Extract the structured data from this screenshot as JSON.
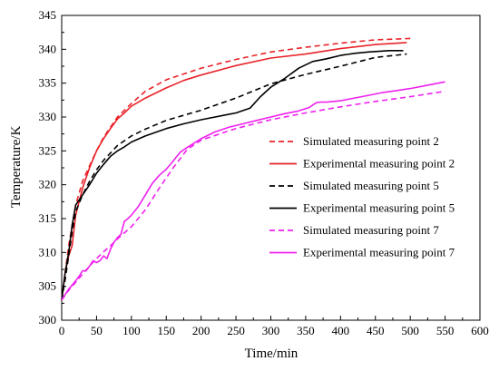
{
  "chart_data": {
    "type": "line",
    "xlabel": "Time/min",
    "ylabel": "Temperature/K",
    "xlim": [
      0,
      600
    ],
    "ylim": [
      300,
      345
    ],
    "xticks": [
      "0",
      "50",
      "100",
      "150",
      "200",
      "250",
      "300",
      "350",
      "400",
      "450",
      "500",
      "550",
      "600"
    ],
    "yticks": [
      "300",
      "305",
      "310",
      "315",
      "320",
      "325",
      "330",
      "335",
      "340",
      "345"
    ],
    "grid": false,
    "legend_position": "center-right",
    "series": [
      {
        "name": "Simulated measuring point 2",
        "color": "#e8232a",
        "style": "dashed",
        "x": [
          0,
          5,
          10,
          15,
          20,
          30,
          40,
          50,
          60,
          80,
          100,
          120,
          150,
          200,
          250,
          300,
          350,
          400,
          450,
          500
        ],
        "y": [
          303,
          307,
          311,
          314,
          317,
          320.5,
          322.8,
          325,
          327,
          330,
          332,
          333.8,
          335.5,
          337.2,
          338.5,
          339.6,
          340.3,
          340.9,
          341.4,
          341.6
        ]
      },
      {
        "name": "Experimental measuring point 2",
        "color": "#e8232a",
        "style": "solid",
        "x": [
          0,
          5,
          10,
          15,
          20,
          30,
          40,
          50,
          60,
          70,
          80,
          90,
          100,
          120,
          150,
          175,
          200,
          250,
          300,
          350,
          400,
          450,
          495
        ],
        "y": [
          303,
          307,
          309.5,
          311,
          315.5,
          319.5,
          322.5,
          325,
          326.8,
          328.3,
          329.7,
          330.6,
          331.6,
          332.8,
          334.3,
          335.4,
          336.2,
          337.6,
          338.7,
          339.3,
          340.1,
          340.7,
          341
        ]
      },
      {
        "name": "Simulated measuring point 5",
        "color": "#000000",
        "style": "dashed",
        "x": [
          0,
          5,
          10,
          15,
          20,
          30,
          40,
          50,
          60,
          80,
          100,
          120,
          150,
          200,
          250,
          300,
          350,
          400,
          450,
          495
        ],
        "y": [
          303,
          306,
          309.5,
          313,
          316,
          318.5,
          320.5,
          322.2,
          323.6,
          325.8,
          327.2,
          328.2,
          329.5,
          331,
          332.8,
          334.9,
          336.3,
          337.5,
          338.8,
          339.3
        ]
      },
      {
        "name": "Experimental measuring point 5",
        "color": "#000000",
        "style": "solid",
        "x": [
          0,
          5,
          10,
          15,
          20,
          30,
          40,
          50,
          60,
          70,
          80,
          90,
          100,
          120,
          150,
          175,
          200,
          250,
          270,
          285,
          300,
          320,
          340,
          360,
          380,
          400,
          420,
          440,
          470,
          490
        ],
        "y": [
          303,
          307,
          310,
          314,
          317,
          318.5,
          320,
          321.7,
          323,
          324.2,
          325,
          325.6,
          326.3,
          327.2,
          328.3,
          329,
          329.6,
          330.6,
          331.3,
          333,
          334.4,
          335.7,
          337.2,
          338.2,
          338.6,
          339.1,
          339.4,
          339.6,
          339.8,
          339.8
        ]
      },
      {
        "name": "Simulated measuring point 7",
        "color": "#ee22ee",
        "style": "dashed",
        "x": [
          0,
          10,
          20,
          30,
          40,
          50,
          60,
          70,
          80,
          100,
          120,
          140,
          160,
          180,
          200,
          250,
          300,
          350,
          400,
          450,
          500,
          550
        ],
        "y": [
          303,
          304.4,
          305.6,
          306.8,
          308,
          309.1,
          310.1,
          311,
          312,
          313.8,
          316.3,
          319.5,
          322.5,
          325.2,
          326.6,
          328.3,
          329.6,
          330.6,
          331.5,
          332.3,
          333,
          333.8
        ]
      },
      {
        "name": "Experimental measuring point 7",
        "color": "#ee22ee",
        "style": "solid",
        "x": [
          0,
          10,
          20,
          25,
          30,
          35,
          40,
          45,
          50,
          55,
          60,
          65,
          70,
          75,
          80,
          85,
          90,
          95,
          100,
          110,
          120,
          130,
          140,
          150,
          160,
          170,
          180,
          200,
          220,
          240,
          260,
          280,
          300,
          320,
          340,
          355,
          365,
          370,
          380,
          400,
          420,
          440,
          460,
          480,
          500,
          520,
          550
        ],
        "y": [
          303,
          304.6,
          305.8,
          306.5,
          307.3,
          307.3,
          308,
          308.8,
          308.5,
          308.8,
          309.5,
          309.1,
          310.5,
          311.5,
          312.2,
          312.7,
          314.6,
          315,
          315.5,
          316.8,
          318.5,
          320.2,
          321.4,
          322.3,
          323.5,
          324.8,
          325.5,
          326.8,
          327.8,
          328.5,
          329,
          329.5,
          330,
          330.5,
          330.9,
          331.4,
          332.1,
          332.2,
          332.2,
          332.4,
          332.8,
          333.2,
          333.6,
          333.9,
          334.2,
          334.6,
          335.2
        ]
      }
    ]
  }
}
